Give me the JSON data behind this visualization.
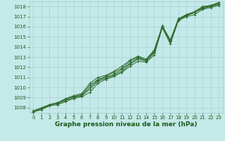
{
  "x": [
    0,
    1,
    2,
    3,
    4,
    5,
    6,
    7,
    8,
    9,
    10,
    11,
    12,
    13,
    14,
    15,
    16,
    17,
    18,
    19,
    20,
    21,
    22,
    23
  ],
  "series": [
    [
      1007.6,
      1007.8,
      1008.2,
      1008.3,
      1008.6,
      1008.9,
      1009.1,
      1009.5,
      1010.4,
      1010.8,
      1011.1,
      1011.5,
      1012.1,
      1012.6,
      1012.5,
      1013.2,
      1015.9,
      1014.3,
      1016.6,
      1017.0,
      1017.2,
      1017.7,
      1017.9,
      1018.1
    ],
    [
      1007.6,
      1007.9,
      1008.2,
      1008.4,
      1008.7,
      1009.0,
      1009.2,
      1009.8,
      1010.6,
      1010.9,
      1011.2,
      1011.6,
      1012.3,
      1012.8,
      1012.6,
      1013.4,
      1016.0,
      1014.5,
      1016.7,
      1017.1,
      1017.4,
      1017.8,
      1018.0,
      1018.2
    ],
    [
      1007.6,
      1007.9,
      1008.3,
      1008.5,
      1008.8,
      1009.1,
      1009.2,
      1010.0,
      1010.7,
      1011.0,
      1011.3,
      1011.8,
      1012.4,
      1012.9,
      1012.7,
      1013.5,
      1016.0,
      1014.6,
      1016.7,
      1017.1,
      1017.4,
      1017.9,
      1018.0,
      1018.3
    ],
    [
      1007.6,
      1007.9,
      1008.3,
      1008.5,
      1008.8,
      1009.1,
      1009.3,
      1010.2,
      1010.8,
      1011.1,
      1011.5,
      1011.9,
      1012.6,
      1013.0,
      1012.7,
      1013.6,
      1016.0,
      1014.6,
      1016.7,
      1017.2,
      1017.4,
      1017.9,
      1018.1,
      1018.3
    ],
    [
      1007.7,
      1008.0,
      1008.3,
      1008.5,
      1008.9,
      1009.2,
      1009.4,
      1010.4,
      1011.0,
      1011.2,
      1011.6,
      1012.1,
      1012.7,
      1013.1,
      1012.8,
      1013.7,
      1016.1,
      1014.7,
      1016.8,
      1017.2,
      1017.5,
      1018.0,
      1018.1,
      1018.4
    ]
  ],
  "line_color": "#2d6a2d",
  "marker": "+",
  "markersize": 3.5,
  "linewidth": 0.7,
  "bg_color": "#c5e8e8",
  "grid_color": "#9fcece",
  "plot_bg": "#d4f0f0",
  "ylim": [
    1007.5,
    1018.5
  ],
  "yticks": [
    1008,
    1009,
    1010,
    1011,
    1012,
    1013,
    1014,
    1015,
    1016,
    1017,
    1018
  ],
  "xlim": [
    -0.5,
    23.5
  ],
  "xticks": [
    0,
    1,
    2,
    3,
    4,
    5,
    6,
    7,
    8,
    9,
    10,
    11,
    12,
    13,
    14,
    15,
    16,
    17,
    18,
    19,
    20,
    21,
    22,
    23
  ],
  "xlabel": "Graphe pression niveau de la mer (hPa)",
  "xlabel_fontsize": 6.5,
  "tick_fontsize": 5,
  "tick_color": "#1a5c1a",
  "fig_width": 3.2,
  "fig_height": 2.0,
  "dpi": 100
}
